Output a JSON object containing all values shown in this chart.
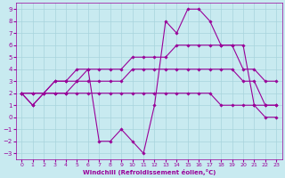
{
  "xlabel": "Windchill (Refroidissement éolien,°C)",
  "xlim": [
    -0.5,
    23.5
  ],
  "ylim": [
    -3.5,
    9.5
  ],
  "xticks": [
    0,
    1,
    2,
    3,
    4,
    5,
    6,
    7,
    8,
    9,
    10,
    11,
    12,
    13,
    14,
    15,
    16,
    17,
    18,
    19,
    20,
    21,
    22,
    23
  ],
  "yticks": [
    -3,
    -2,
    -1,
    0,
    1,
    2,
    3,
    4,
    5,
    6,
    7,
    8,
    9
  ],
  "bg_color": "#c8eaf0",
  "grid_color": "#a8d4dc",
  "line_color": "#990099",
  "line_width": 0.8,
  "marker": "D",
  "marker_size": 1.8,
  "curves": [
    {
      "x": [
        0,
        1,
        3,
        4,
        5,
        6,
        7,
        8,
        9,
        10,
        11,
        12,
        13,
        14,
        15,
        16,
        17,
        18,
        19,
        20,
        21,
        22,
        23
      ],
      "y": [
        2,
        1,
        3,
        3,
        4,
        4,
        -2,
        -2,
        -1,
        -2,
        -3,
        1,
        8,
        7,
        9,
        9,
        8,
        6,
        6,
        6,
        1,
        1,
        1
      ]
    },
    {
      "x": [
        0,
        1,
        2,
        3,
        4,
        5,
        6,
        7,
        8,
        9,
        10,
        11,
        12,
        13,
        14,
        15,
        16,
        17,
        18,
        19,
        20,
        21,
        22,
        23
      ],
      "y": [
        2,
        2,
        2,
        3,
        3,
        3,
        4,
        4,
        4,
        4,
        5,
        5,
        5,
        5,
        6,
        6,
        6,
        6,
        6,
        6,
        4,
        4,
        3,
        3
      ]
    },
    {
      "x": [
        0,
        1,
        2,
        3,
        4,
        5,
        6,
        7,
        8,
        9,
        10,
        11,
        12,
        13,
        14,
        15,
        16,
        17,
        18,
        19,
        20,
        21,
        22,
        23
      ],
      "y": [
        2,
        2,
        2,
        2,
        2,
        3,
        3,
        3,
        3,
        3,
        4,
        4,
        4,
        4,
        4,
        4,
        4,
        4,
        4,
        4,
        3,
        3,
        1,
        1
      ]
    },
    {
      "x": [
        0,
        1,
        2,
        3,
        4,
        5,
        6,
        7,
        8,
        9,
        10,
        11,
        12,
        13,
        14,
        15,
        16,
        17,
        18,
        19,
        20,
        21,
        22,
        23
      ],
      "y": [
        2,
        1,
        2,
        2,
        2,
        2,
        2,
        2,
        2,
        2,
        2,
        2,
        2,
        2,
        2,
        2,
        2,
        2,
        1,
        1,
        1,
        1,
        0,
        0
      ]
    }
  ]
}
